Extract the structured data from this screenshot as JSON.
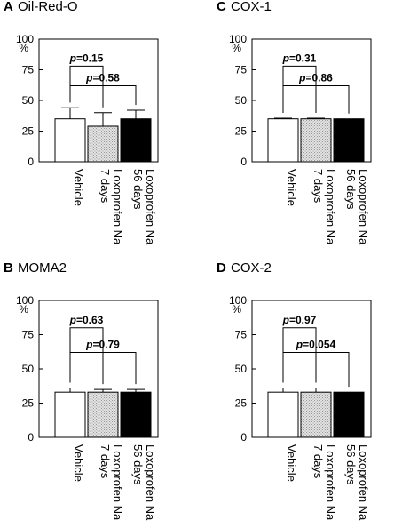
{
  "chart_data": [
    {
      "type": "bar",
      "panel": "A",
      "title": "Oil-Red-O",
      "unit": "%",
      "ylim": [
        0,
        100
      ],
      "yticks": [
        0,
        25,
        50,
        75,
        100
      ],
      "categories": [
        "Vehicle",
        "Loxoprofen Na 7 days",
        "Loxoprofen Na 56 days"
      ],
      "category_lines": [
        [
          "Vehicle"
        ],
        [
          "Loxoprofen Na",
          "7 days"
        ],
        [
          "Loxoprofen Na",
          "56 days"
        ]
      ],
      "values": [
        35,
        29,
        35
      ],
      "errors": [
        9,
        11,
        7
      ],
      "bar_fills": [
        "#ffffff",
        "#d4d4d4",
        "#000000"
      ],
      "comparisons": [
        {
          "from": 0,
          "to": 1,
          "p_prefix": "p",
          "p_value": "=0.15",
          "level": 1
        },
        {
          "from": 0,
          "to": 2,
          "p_prefix": "p",
          "p_value": "=0.58",
          "level": 2
        }
      ]
    },
    {
      "type": "bar",
      "panel": "C",
      "title": "COX-1",
      "unit": "%",
      "ylim": [
        0,
        100
      ],
      "yticks": [
        0,
        25,
        50,
        75,
        100
      ],
      "categories": [
        "Vehicle",
        "Loxoprofen Na 7 days",
        "Loxoprofen Na 56 days"
      ],
      "category_lines": [
        [
          "Vehicle"
        ],
        [
          "Loxoprofen Na",
          "7 days"
        ],
        [
          "Loxoprofen Na",
          "56 days"
        ]
      ],
      "values": [
        35,
        35,
        35
      ],
      "errors": [
        0.5,
        0.5,
        0
      ],
      "bar_fills": [
        "#ffffff",
        "#d4d4d4",
        "#000000"
      ],
      "comparisons": [
        {
          "from": 0,
          "to": 1,
          "p_prefix": "p",
          "p_value": "=0.31",
          "level": 1
        },
        {
          "from": 0,
          "to": 2,
          "p_prefix": "p",
          "p_value": "=0.86",
          "level": 2
        }
      ]
    },
    {
      "type": "bar",
      "panel": "B",
      "title": "MOMA2",
      "unit": "%",
      "ylim": [
        0,
        100
      ],
      "yticks": [
        0,
        25,
        50,
        75,
        100
      ],
      "categories": [
        "Vehicle",
        "Loxoprofen Na 7 days",
        "Loxoprofen Na 56 days"
      ],
      "category_lines": [
        [
          "Vehicle"
        ],
        [
          "Loxoprofen Na",
          "7 days"
        ],
        [
          "Loxoprofen Na",
          "56 days"
        ]
      ],
      "values": [
        33,
        33,
        33
      ],
      "errors": [
        3,
        2,
        2
      ],
      "bar_fills": [
        "#ffffff",
        "#d4d4d4",
        "#000000"
      ],
      "comparisons": [
        {
          "from": 0,
          "to": 1,
          "p_prefix": "p",
          "p_value": "=0.63",
          "level": 1
        },
        {
          "from": 0,
          "to": 2,
          "p_prefix": "p",
          "p_value": "=0.79",
          "level": 2
        }
      ]
    },
    {
      "type": "bar",
      "panel": "D",
      "title": "COX-2",
      "unit": "%",
      "ylim": [
        0,
        100
      ],
      "yticks": [
        0,
        25,
        50,
        75,
        100
      ],
      "categories": [
        "Vehicle",
        "Loxoprofen Na 7 days",
        "Loxoprofen Na 56 days"
      ],
      "category_lines": [
        [
          "Vehicle"
        ],
        [
          "Loxoprofen Na",
          "7 days"
        ],
        [
          "Loxoprofen Na",
          "56 days"
        ]
      ],
      "values": [
        33,
        33,
        33
      ],
      "errors": [
        3,
        3,
        0
      ],
      "bar_fills": [
        "#ffffff",
        "#d4d4d4",
        "#000000"
      ],
      "comparisons": [
        {
          "from": 0,
          "to": 1,
          "p_prefix": "p",
          "p_value": "=0.97",
          "level": 1
        },
        {
          "from": 0,
          "to": 2,
          "p_prefix": "p",
          "p_value": "=0.054",
          "level": 2
        }
      ]
    }
  ]
}
